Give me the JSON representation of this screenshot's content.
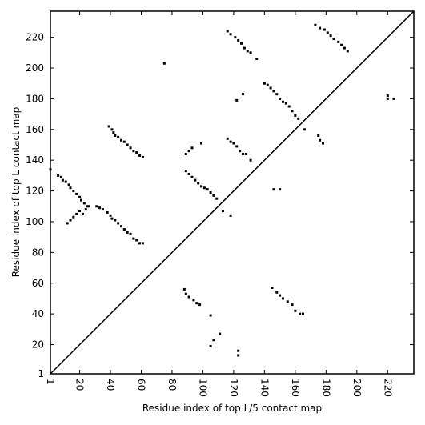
{
  "chart_data": {
    "type": "scatter",
    "xlabel": "Residue index of top L/5 contact map",
    "ylabel": "Residue index of top L contact map",
    "xlim": [
      1,
      237
    ],
    "ylim": [
      1,
      237
    ],
    "xticks": [
      1,
      20,
      40,
      60,
      80,
      100,
      120,
      140,
      160,
      180,
      200,
      220
    ],
    "yticks": [
      1,
      20,
      40,
      60,
      80,
      100,
      120,
      140,
      160,
      180,
      200,
      220
    ],
    "color": "#000000",
    "x": [
      1,
      6,
      8,
      9,
      11,
      13,
      14,
      16,
      18,
      20,
      21,
      23,
      25,
      12,
      14,
      16,
      18,
      20,
      22,
      24,
      26,
      31,
      33,
      35,
      38,
      40,
      41,
      43,
      45,
      47,
      49,
      51,
      53,
      55,
      57,
      59,
      61,
      39,
      41,
      42,
      43,
      45,
      47,
      49,
      51,
      53,
      55,
      57,
      59,
      61,
      75,
      89,
      91,
      93,
      89,
      91,
      93,
      95,
      97,
      99,
      101,
      103,
      105,
      107,
      109,
      99,
      113,
      118,
      116,
      118,
      120,
      122,
      124,
      126,
      128,
      131,
      116,
      118,
      121,
      123,
      125,
      127,
      129,
      131,
      135,
      122,
      126,
      140,
      142,
      144,
      146,
      148,
      150,
      152,
      154,
      156,
      158,
      160,
      162,
      166,
      175,
      176,
      178,
      173,
      176,
      179,
      181,
      183,
      185,
      188,
      190,
      192,
      194,
      220,
      220,
      224,
      105,
      107,
      105,
      111,
      123,
      123,
      88,
      89,
      91,
      94,
      96,
      98,
      145,
      148,
      150,
      152,
      155,
      158,
      160,
      163,
      165,
      146,
      150
    ],
    "y": [
      134,
      130,
      129,
      127,
      126,
      124,
      122,
      120,
      118,
      116,
      114,
      112,
      110,
      99,
      101,
      103,
      105,
      107,
      105,
      108,
      110,
      110,
      109,
      108,
      106,
      104,
      102,
      101,
      99,
      97,
      95,
      93,
      92,
      89,
      88,
      86,
      86,
      162,
      160,
      158,
      156,
      155,
      153,
      152,
      150,
      148,
      146,
      145,
      143,
      142,
      203,
      144,
      146,
      148,
      133,
      131,
      129,
      127,
      125,
      123,
      122,
      121,
      119,
      117,
      115,
      151,
      107,
      104,
      154,
      152,
      151,
      149,
      146,
      144,
      144,
      140,
      224,
      222,
      220,
      218,
      216,
      213,
      211,
      210,
      206,
      179,
      183,
      190,
      189,
      187,
      185,
      183,
      180,
      178,
      177,
      175,
      172,
      169,
      167,
      160,
      156,
      153,
      151,
      228,
      226,
      225,
      223,
      221,
      219,
      217,
      215,
      213,
      211,
      182,
      180,
      180,
      39,
      23,
      19,
      27,
      16,
      13,
      56,
      53,
      51,
      49,
      47,
      46,
      57,
      54,
      52,
      50,
      48,
      46,
      42,
      40,
      40,
      121,
      121
    ]
  }
}
